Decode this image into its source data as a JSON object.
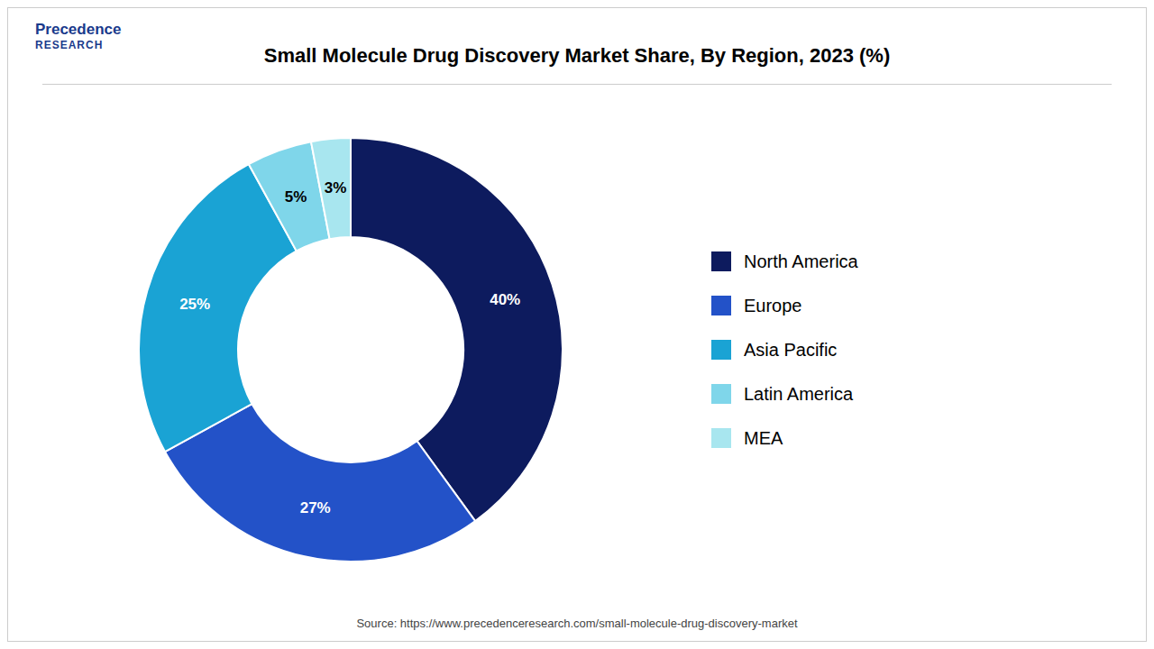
{
  "chart_data": {
    "type": "pie",
    "title": "Small Molecule Drug Discovery Market Share, By Region, 2023 (%)",
    "categories": [
      "North America",
      "Europe",
      "Asia Pacific",
      "Latin America",
      "MEA"
    ],
    "values": [
      40,
      27,
      25,
      5,
      3
    ],
    "value_labels": [
      "40%",
      "27%",
      "25%",
      "5%",
      "3%"
    ],
    "colors": [
      "#0d1b5e",
      "#2352c8",
      "#1aa3d4",
      "#7fd6ea",
      "#a8e6ef"
    ],
    "data_labels": true,
    "legend": "right",
    "annotations": [
      "Precedence",
      "RESEARCH",
      "Source: https://www.precedenceresearch.com/small-molecule-drug-discovery-market"
    ]
  }
}
